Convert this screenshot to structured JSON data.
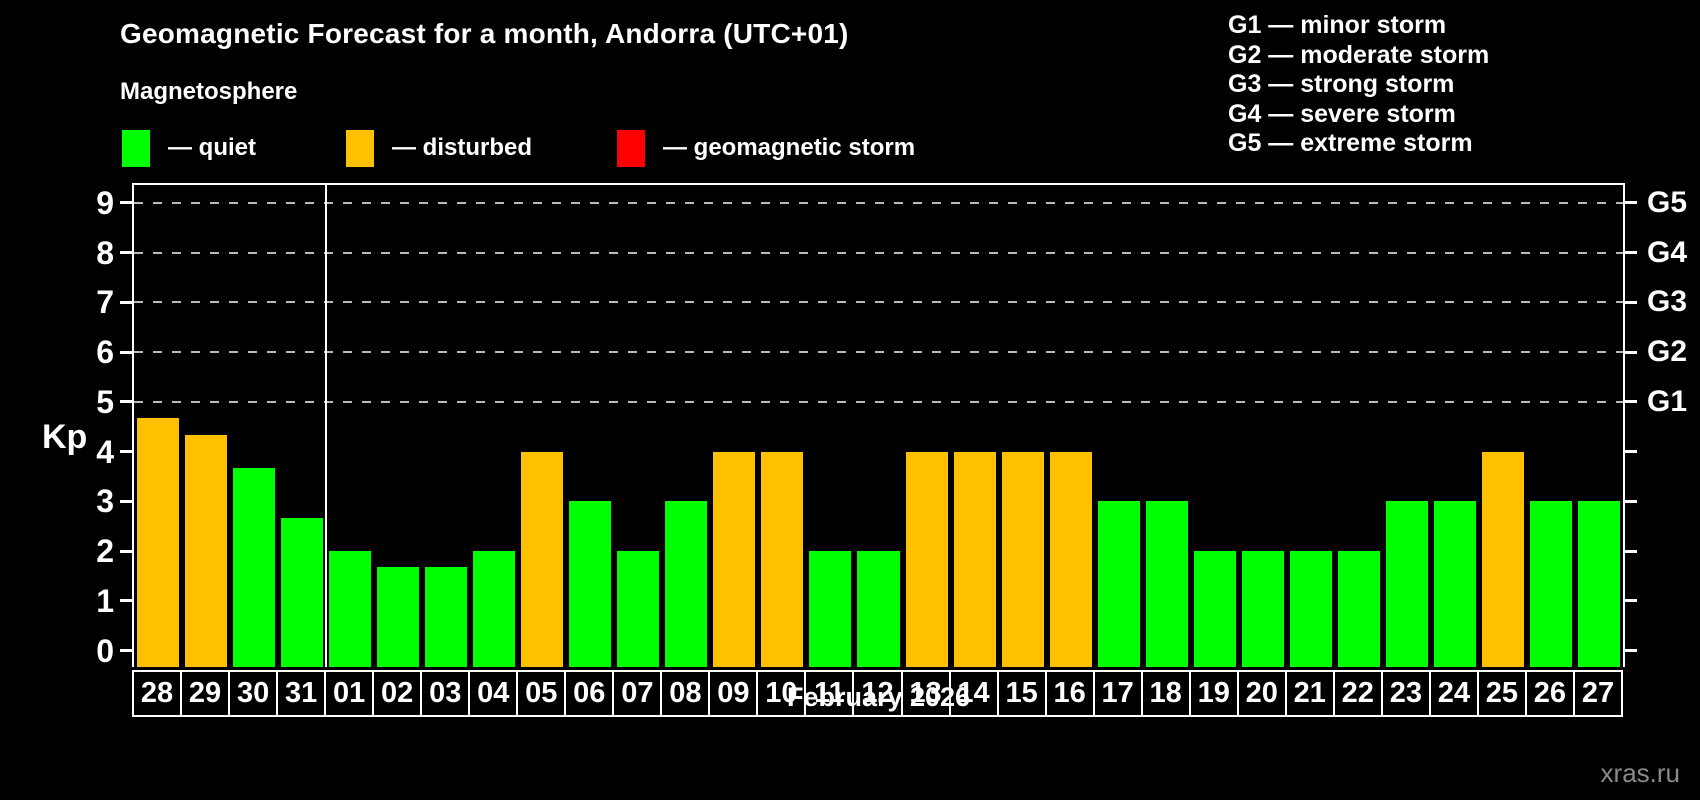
{
  "header": {
    "title": "Geomagnetic Forecast for a month, Andorra (UTC+01)",
    "subtitle": "Magnetosphere"
  },
  "legend": {
    "items": [
      {
        "key": "quiet",
        "label": "— quiet",
        "color": "#00ff00"
      },
      {
        "key": "disturbed",
        "label": "— disturbed",
        "color": "#ffc000"
      },
      {
        "key": "storm",
        "label": "— geomagnetic storm",
        "color": "#ff0000"
      }
    ]
  },
  "storm_scale": {
    "items": [
      "G1 — minor storm",
      "G2 — moderate storm",
      "G3 — strong storm",
      "G4 — severe storm",
      "G5 — extreme storm"
    ]
  },
  "chart_data": {
    "type": "bar",
    "title": "Geomagnetic Forecast for a month, Andorra (UTC+01)",
    "ylabel": "Kp",
    "xlabel": "February 2026",
    "ylim": [
      0,
      9
    ],
    "yticks": [
      0,
      1,
      2,
      3,
      4,
      5,
      6,
      7,
      8,
      9
    ],
    "grid_dashed_at": [
      5,
      6,
      7,
      8,
      9
    ],
    "storm_levels": [
      {
        "g": "G5",
        "kp": 9
      },
      {
        "g": "G4",
        "kp": 8
      },
      {
        "g": "G3",
        "kp": 7
      },
      {
        "g": "G2",
        "kp": 6
      },
      {
        "g": "G1",
        "kp": 5
      }
    ],
    "month_separator_after_index": 3,
    "categories": [
      "28",
      "29",
      "30",
      "31",
      "01",
      "02",
      "03",
      "04",
      "05",
      "06",
      "07",
      "08",
      "09",
      "10",
      "11",
      "12",
      "13",
      "14",
      "15",
      "16",
      "17",
      "18",
      "19",
      "20",
      "21",
      "22",
      "23",
      "24",
      "25",
      "26",
      "27"
    ],
    "values": [
      4.67,
      4.33,
      3.67,
      2.67,
      2,
      1.67,
      1.67,
      2,
      4,
      3,
      2,
      3,
      4,
      4,
      2,
      2,
      4,
      4,
      4,
      4,
      3,
      3,
      2,
      2,
      2,
      2,
      3,
      3,
      4,
      3,
      3
    ],
    "conditions": [
      "disturbed",
      "disturbed",
      "quiet",
      "quiet",
      "quiet",
      "quiet",
      "quiet",
      "quiet",
      "disturbed",
      "quiet",
      "quiet",
      "quiet",
      "disturbed",
      "disturbed",
      "quiet",
      "quiet",
      "disturbed",
      "disturbed",
      "disturbed",
      "disturbed",
      "quiet",
      "quiet",
      "quiet",
      "quiet",
      "quiet",
      "quiet",
      "quiet",
      "quiet",
      "disturbed",
      "quiet",
      "quiet"
    ],
    "colors": {
      "quiet": "#00ff00",
      "disturbed": "#ffc000",
      "storm": "#ff0000"
    }
  },
  "footer": {
    "watermark": "xras.ru"
  }
}
